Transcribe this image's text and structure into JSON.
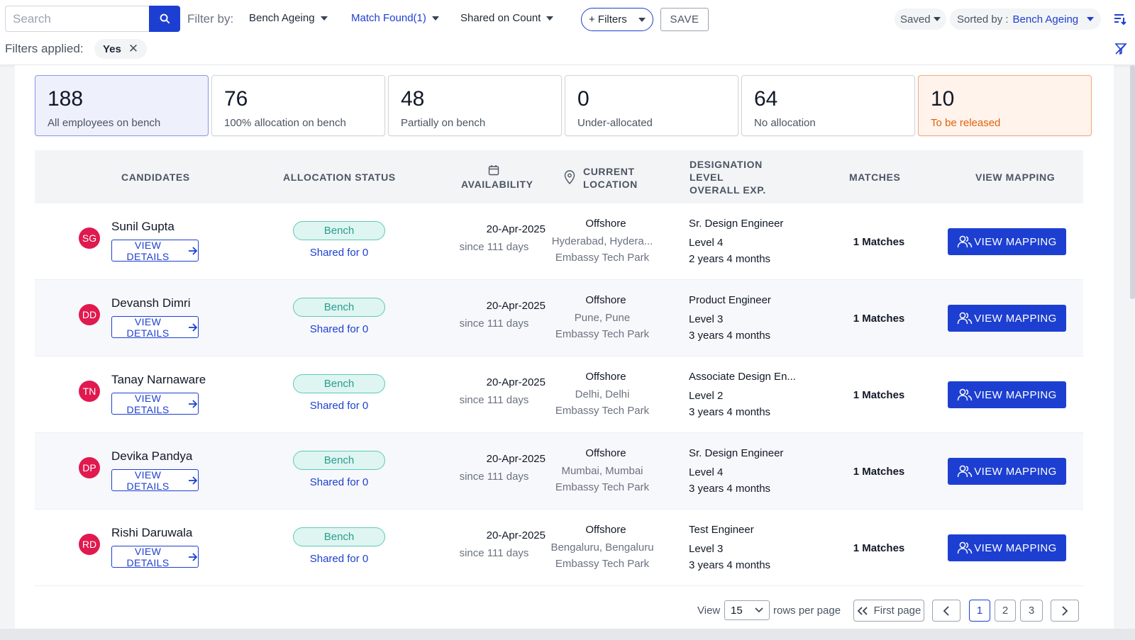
{
  "toolbar": {
    "search_placeholder": "Search",
    "filter_by_label": "Filter by:",
    "filter_dropdowns": [
      "Bench Ageing",
      "Match Found(1)",
      "Shared on Count"
    ],
    "plus_filters_label": "+ Filters",
    "save_label": "SAVE",
    "saved_label": "Saved",
    "sorted_prefix": "Sorted by : ",
    "sorted_value": "Bench Ageing",
    "filters_applied_label": "Filters applied:",
    "applied_chip": "Yes",
    "chip_close": "✕"
  },
  "stats": [
    {
      "value": "188",
      "label": "All employees on bench"
    },
    {
      "value": "76",
      "label": "100% allocation on bench"
    },
    {
      "value": "48",
      "label": "Partially on bench"
    },
    {
      "value": "0",
      "label": "Under-allocated"
    },
    {
      "value": "64",
      "label": "No allocation"
    },
    {
      "value": "10",
      "label": "To be released"
    }
  ],
  "table": {
    "headers": {
      "candidates": "CANDIDATES",
      "allocation": "ALLOCATION STATUS",
      "availability": "AVAILABILITY",
      "location_1": "CURRENT",
      "location_2": "LOCATION",
      "designation_1": "DESIGNATION",
      "designation_2": "LEVEL",
      "designation_3": "OVERALL EXP.",
      "matches": "MATCHES",
      "view_mapping": "VIEW MAPPING"
    },
    "view_details_label": "VIEW DETAILS",
    "view_mapping_label": "VIEW MAPPING",
    "rows": [
      {
        "initials": "SG",
        "name": "Sunil Gupta",
        "status": "Bench",
        "shared": "Shared for 0",
        "date": "20-Apr-2025",
        "since": "since 111 days",
        "loc_type": "Offshore",
        "city": "Hyderabad, Hydera...",
        "site": "Embassy Tech Park",
        "designation": "Sr. Design Engineer",
        "level": "Level 4",
        "exp": "2 years 4 months",
        "matches": "1 Matches"
      },
      {
        "initials": "DD",
        "name": "Devansh Dimri",
        "status": "Bench",
        "shared": "Shared for 0",
        "date": "20-Apr-2025",
        "since": "since 111 days",
        "loc_type": "Offshore",
        "city": "Pune, Pune",
        "site": "Embassy Tech Park",
        "designation": "Product Engineer",
        "level": "Level 3",
        "exp": "3 years 4 months",
        "matches": "1 Matches"
      },
      {
        "initials": "TN",
        "name": "Tanay Narnaware",
        "status": "Bench",
        "shared": "Shared for 0",
        "date": "20-Apr-2025",
        "since": "since 111 days",
        "loc_type": "Offshore",
        "city": "Delhi, Delhi",
        "site": "Embassy Tech Park",
        "designation": "Associate Design En...",
        "level": "Level 2",
        "exp": "3 years 4 months",
        "matches": "1 Matches"
      },
      {
        "initials": "DP",
        "name": "Devika Pandya",
        "status": "Bench",
        "shared": "Shared for 0",
        "date": "20-Apr-2025",
        "since": "since 111 days",
        "loc_type": "Offshore",
        "city": "Mumbai, Mumbai",
        "site": "Embassy Tech Park",
        "designation": "Sr. Design Engineer",
        "level": "Level 4",
        "exp": "3 years 4 months",
        "matches": "1 Matches"
      },
      {
        "initials": "RD",
        "name": "Rishi Daruwala",
        "status": "Bench",
        "shared": "Shared for 0",
        "date": "20-Apr-2025",
        "since": "since 111 days",
        "loc_type": "Offshore",
        "city": "Bengaluru, Bengaluru",
        "site": "Embassy Tech Park",
        "designation": "Test Engineer",
        "level": "Level 3",
        "exp": "3 years 4 months",
        "matches": "1 Matches"
      }
    ]
  },
  "pagination": {
    "view_label": "View",
    "rows_value": "15",
    "rows_label": "rows per page",
    "first_page_label": "First page",
    "pages": [
      "1",
      "2",
      "3"
    ],
    "current_page": "1"
  },
  "colors": {
    "accent": "#1d3fd1",
    "avatar": "#e0194f",
    "bench": "#2a9d8f",
    "warn": "#e0620b"
  }
}
